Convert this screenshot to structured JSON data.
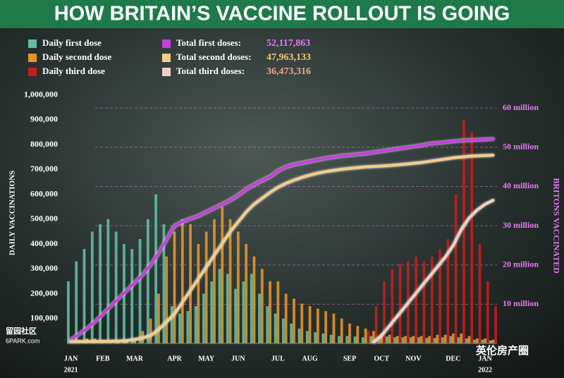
{
  "chart_data": {
    "type": "bar-line",
    "title": "HOW BRITAIN’S VACCINE ROLLOUT IS GOING",
    "y_label": "DAILY VACCINATIONS",
    "y2_label": "BRITONS VACCINATED",
    "categories": [
      "JAN",
      null,
      null,
      null,
      "FEB",
      null,
      null,
      null,
      "MAR",
      null,
      null,
      null,
      null,
      "APR",
      null,
      null,
      null,
      "MAY",
      null,
      null,
      null,
      "JUN",
      null,
      null,
      null,
      null,
      "JUL",
      null,
      null,
      null,
      "AUG",
      null,
      null,
      null,
      null,
      "SEP",
      null,
      null,
      null,
      "OCT",
      null,
      null,
      null,
      "NOV",
      null,
      null,
      null,
      null,
      "DEC",
      null,
      null,
      null,
      "JAN",
      null
    ],
    "years": [
      "2021",
      null,
      null,
      null,
      null,
      null,
      null,
      null,
      null,
      null,
      null,
      null,
      null,
      null,
      null,
      null,
      null,
      null,
      null,
      null,
      null,
      null,
      null,
      null,
      null,
      null,
      null,
      null,
      null,
      null,
      null,
      null,
      null,
      null,
      null,
      null,
      null,
      null,
      null,
      null,
      null,
      null,
      null,
      null,
      null,
      null,
      null,
      null,
      null,
      null,
      null,
      null,
      "2022",
      null
    ],
    "ylim": [
      0,
      1050000
    ],
    "yticks": [
      {
        "value": 100000,
        "label": "100,000"
      },
      {
        "value": 200000,
        "label": "200,000"
      },
      {
        "value": 300000,
        "label": "300,000"
      },
      {
        "value": 400000,
        "label": "400,000"
      },
      {
        "value": 500000,
        "label": "500,000"
      },
      {
        "value": 600000,
        "label": "600,000"
      },
      {
        "value": 700000,
        "label": "700,000"
      },
      {
        "value": 800000,
        "label": "800,000"
      },
      {
        "value": 900000,
        "label": "900,000"
      },
      {
        "value": 1000000,
        "label": "1,000,000"
      }
    ],
    "y2lim": [
      0,
      66500000
    ],
    "y2ticks": [
      {
        "value": 10000000,
        "label": "10 million"
      },
      {
        "value": 20000000,
        "label": "20 million"
      },
      {
        "value": 30000000,
        "label": "30 million"
      },
      {
        "value": 40000000,
        "label": "40 million"
      },
      {
        "value": 50000000,
        "label": "50 million"
      },
      {
        "value": 60000000,
        "label": "60 million"
      }
    ],
    "series": [
      {
        "name": "Daily first dose",
        "kind": "bar",
        "color": "#5fbfa5",
        "values": [
          250000,
          330000,
          380000,
          450000,
          480000,
          500000,
          450000,
          400000,
          380000,
          420000,
          500000,
          600000,
          480000,
          150000,
          120000,
          130000,
          150000,
          200000,
          250000,
          300000,
          280000,
          220000,
          250000,
          280000,
          200000,
          150000,
          120000,
          100000,
          80000,
          60000,
          50000,
          45000,
          40000,
          35000,
          30000,
          30000,
          28000,
          25000,
          30000,
          30000,
          28000,
          25000,
          25000,
          25000,
          25000,
          22000,
          22000,
          25000,
          30000,
          25000,
          20000,
          15000,
          15000,
          12000
        ]
      },
      {
        "name": "Daily second dose",
        "kind": "bar",
        "color": "#e3952a",
        "values": [
          10000,
          15000,
          20000,
          20000,
          15000,
          10000,
          10000,
          15000,
          20000,
          50000,
          100000,
          200000,
          350000,
          450000,
          500000,
          480000,
          400000,
          450000,
          500000,
          550000,
          500000,
          450000,
          400000,
          350000,
          300000,
          250000,
          250000,
          200000,
          180000,
          160000,
          150000,
          140000,
          130000,
          120000,
          100000,
          80000,
          70000,
          60000,
          50000,
          40000,
          35000,
          30000,
          30000,
          30000,
          30000,
          30000,
          35000,
          35000,
          40000,
          40000,
          30000,
          20000,
          20000,
          15000
        ]
      },
      {
        "name": "Daily third dose",
        "kind": "bar",
        "color": "#c41e1a",
        "values": [
          null,
          null,
          null,
          null,
          null,
          null,
          null,
          null,
          null,
          null,
          null,
          null,
          null,
          null,
          null,
          null,
          null,
          null,
          null,
          null,
          null,
          null,
          null,
          null,
          null,
          null,
          null,
          null,
          null,
          null,
          null,
          null,
          null,
          null,
          null,
          null,
          null,
          50000,
          150000,
          250000,
          300000,
          320000,
          330000,
          350000,
          330000,
          350000,
          380000,
          420000,
          600000,
          900000,
          850000,
          400000,
          250000,
          150000
        ]
      },
      {
        "name": "Total first doses:",
        "kind": "line",
        "axis": "y2",
        "color": "#c73ee0",
        "total_label": "52,117,863",
        "label_color": "#e27cf2",
        "values": [
          1000000,
          2300000,
          3800000,
          5500000,
          7500000,
          9500000,
          11500000,
          13500000,
          15500000,
          17500000,
          20000000,
          23000000,
          26500000,
          30000000,
          31000000,
          31800000,
          32500000,
          33500000,
          34500000,
          35500000,
          36500000,
          37800000,
          39300000,
          40500000,
          41500000,
          42500000,
          44000000,
          45000000,
          45600000,
          46000000,
          46400000,
          46800000,
          47200000,
          47500000,
          47800000,
          48000000,
          48200000,
          48400000,
          48700000,
          49000000,
          49300000,
          49600000,
          49900000,
          50200000,
          50500000,
          50900000,
          51100000,
          51300000,
          51500000,
          51700000,
          51800000,
          51900000,
          52000000,
          52117863
        ]
      },
      {
        "name": "Total second doses:",
        "kind": "line",
        "axis": "y2",
        "color": "#f2cd8a",
        "total_label": "47,963,133",
        "label_color": "#f3c56f",
        "values": [
          400000,
          450000,
          500000,
          500000,
          500000,
          550000,
          600000,
          700000,
          1000000,
          1400000,
          2000000,
          3500000,
          5500000,
          7500000,
          10500000,
          13500000,
          16500000,
          19500000,
          22500000,
          25500000,
          28500000,
          31000000,
          33500000,
          35500000,
          37000000,
          38500000,
          39800000,
          40800000,
          41600000,
          42300000,
          42900000,
          43400000,
          43800000,
          44100000,
          44400000,
          44600000,
          44800000,
          45000000,
          45100000,
          45200000,
          45350000,
          45500000,
          45700000,
          45900000,
          46100000,
          46400000,
          46700000,
          47000000,
          47300000,
          47500000,
          47700000,
          47800000,
          47900000,
          47963133
        ]
      },
      {
        "name": "Total third doses:",
        "kind": "line",
        "axis": "y2",
        "color": "#f2d0c4",
        "total_label": "36,473,316",
        "label_color": "#f2a58a",
        "values": [
          null,
          null,
          null,
          null,
          null,
          null,
          null,
          null,
          null,
          null,
          null,
          null,
          null,
          null,
          null,
          null,
          null,
          null,
          null,
          null,
          null,
          null,
          null,
          null,
          null,
          null,
          null,
          null,
          null,
          null,
          null,
          null,
          null,
          null,
          null,
          null,
          null,
          null,
          300000,
          2000000,
          4500000,
          7000000,
          9500000,
          12000000,
          14500000,
          17000000,
          19500000,
          22000000,
          25000000,
          29000000,
          32000000,
          34000000,
          35500000,
          36473316
        ]
      }
    ],
    "watermarks": [
      "留园社区",
      "6PARK.com",
      "英伦房产圈"
    ]
  }
}
